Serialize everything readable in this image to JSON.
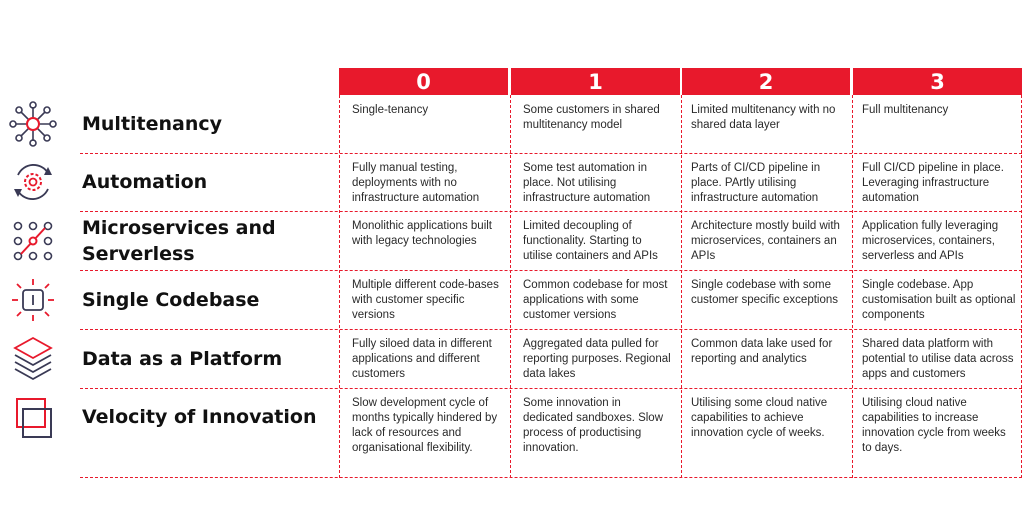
{
  "columns": [
    "0",
    "1",
    "2",
    "3"
  ],
  "rows": [
    {
      "label": "Multitenancy",
      "icon": "network-hub-icon",
      "cells": [
        "Single-tenancy",
        "Some customers in shared multitenancy model",
        "Limited multitenancy with no shared data layer",
        "Full multitenancy"
      ]
    },
    {
      "label": "Automation",
      "icon": "gear-cycle-icon",
      "cells": [
        "Fully manual testing, deployments with no infrastructure automation",
        "Some test automation in place. Not utilising infrastructure automation",
        "Parts of CI/CD pipeline in place. PArtly utilising infrastructure automation",
        "Full CI/CD pipeline in place. Leveraging infrastructure automation"
      ]
    },
    {
      "label": "Microservices and Serverless",
      "icon": "node-grid-icon",
      "cells": [
        "Monolithic applications built with legacy technologies",
        "Limited decoupling of functionality. Starting to utilise containers and APIs",
        "Architecture mostly build with microservices, containers an APIs",
        "Application fully leveraging microservices, containers, serverless and APIs"
      ]
    },
    {
      "label": "Single Codebase",
      "icon": "chip-icon",
      "cells": [
        "Multiple different code-bases with customer specific versions",
        "Common codebase for most applications with some customer versions",
        "Single codebase with some customer specific exceptions",
        "Single codebase. App customisation built as optional components"
      ]
    },
    {
      "label": "Data as a Platform",
      "icon": "layers-icon",
      "cells": [
        "Fully siloed data in different applications and different customers",
        "Aggregated data pulled for reporting purposes. Regional data lakes",
        "Common data lake used for reporting and analytics",
        "Shared data platform with potential to utilise data across apps and customers"
      ]
    },
    {
      "label": "Velocity of Innovation",
      "icon": "overlapping-squares-icon",
      "cells": [
        "Slow development cycle of months typically hindered by lack of resources and organisational flexibility.",
        "Some innovation in dedicated sandboxes. Slow process of productising innovation.",
        "Utilising some cloud native capabilities to achieve innovation cycle of weeks.",
        "Utilising cloud native capabilities to increase innovation cycle from weeks to days."
      ]
    }
  ],
  "colors": {
    "accent": "#e8192c",
    "icon_dark": "#3a3a55"
  }
}
